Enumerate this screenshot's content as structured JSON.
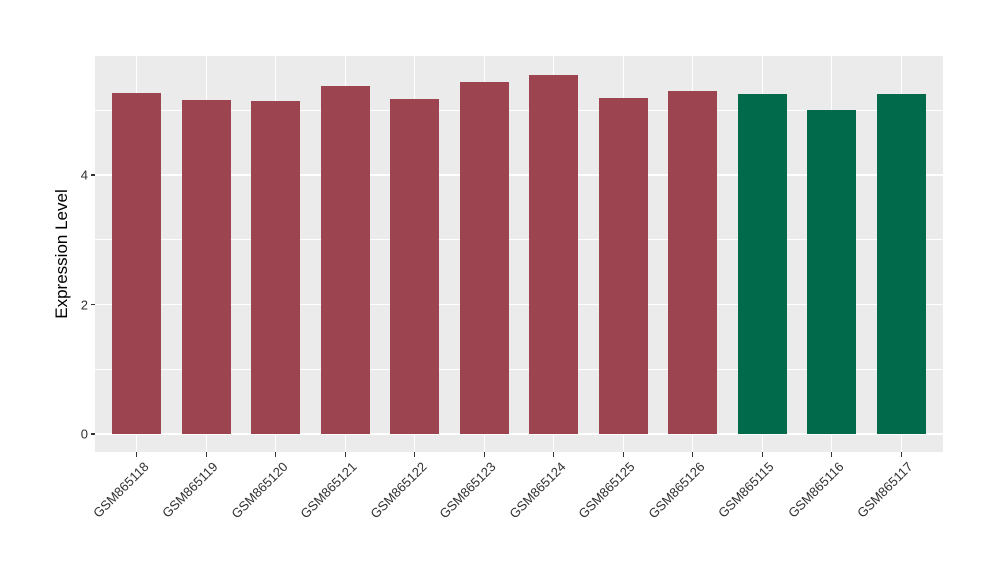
{
  "page": {
    "background_color": "#FFFFFF"
  },
  "chart_data": {
    "type": "bar",
    "title": "",
    "xlabel": "",
    "ylabel": "Expression Level",
    "categories": [
      "GSM865118",
      "GSM865119",
      "GSM865120",
      "GSM865121",
      "GSM865122",
      "GSM865123",
      "GSM865124",
      "GSM865125",
      "GSM865126",
      "GSM865115",
      "GSM865116",
      "GSM865117"
    ],
    "values": [
      5.27,
      5.16,
      5.14,
      5.37,
      5.18,
      5.44,
      5.54,
      5.19,
      5.3,
      5.25,
      5.0,
      5.25
    ],
    "bar_colors": [
      "#9C4450",
      "#9C4450",
      "#9C4450",
      "#9C4450",
      "#9C4450",
      "#9C4450",
      "#9C4450",
      "#9C4450",
      "#9C4450",
      "#016A4A",
      "#016A4A",
      "#016A4A"
    ],
    "groups": [
      {
        "name": "GSM865118-GSM865126",
        "color": "#9C4450"
      },
      {
        "name": "GSM865115-GSM865117",
        "color": "#016A4A"
      }
    ],
    "yticks": [
      0,
      2,
      4
    ],
    "yticks_minor": [
      1,
      3,
      5
    ],
    "ylim": [
      0,
      5.84
    ],
    "grid": "on",
    "legend": "none",
    "panel_bg": "#EBEBEB",
    "grid_color": "#FFFFFF",
    "axis_text_color": "#303030",
    "axis_title_color": "#000000",
    "tick_mark_color": "#333333"
  }
}
